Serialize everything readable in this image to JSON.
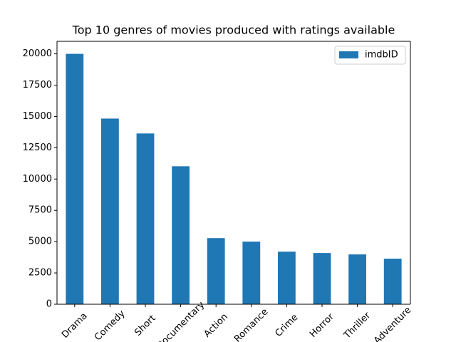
{
  "chart_data": {
    "type": "bar",
    "title": "Top 10 genres of movies produced with ratings available",
    "categories": [
      "Drama",
      "Comedy",
      "Short",
      "Documentary",
      "Action",
      "Romance",
      "Crime",
      "Horror",
      "Thriller",
      "Adventure"
    ],
    "series": [
      {
        "name": "imdbID",
        "color": "#1f77b4",
        "values": [
          20000,
          14830,
          13640,
          11020,
          5280,
          5000,
          4200,
          4090,
          3980,
          3640
        ]
      }
    ],
    "ylim": [
      0,
      21000
    ],
    "yticks": [
      0,
      2500,
      5000,
      7500,
      10000,
      12500,
      15000,
      17500,
      20000
    ],
    "legend": "upper-right"
  }
}
